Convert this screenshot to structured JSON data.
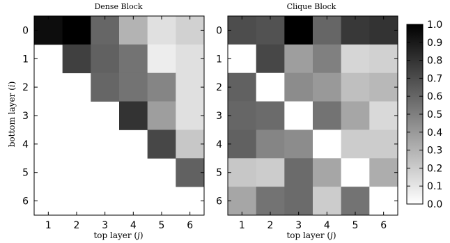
{
  "chart_data": [
    {
      "type": "heatmap",
      "title": "Dense Block",
      "xlabel": "top layer (j)",
      "ylabel": "bottom layer (i)",
      "x_ticks": [
        "1",
        "2",
        "3",
        "4",
        "5",
        "6"
      ],
      "y_ticks": [
        "0",
        "1",
        "2",
        "3",
        "4",
        "5",
        "6"
      ],
      "values": [
        [
          0.95,
          1.0,
          0.6,
          0.3,
          0.12,
          0.18
        ],
        [
          null,
          0.75,
          0.62,
          0.55,
          0.07,
          0.12
        ],
        [
          null,
          null,
          0.6,
          0.55,
          0.48,
          0.12
        ],
        [
          null,
          null,
          null,
          0.8,
          0.38,
          0.12
        ],
        [
          null,
          null,
          null,
          null,
          0.72,
          0.22
        ],
        [
          null,
          null,
          null,
          null,
          null,
          0.62
        ],
        [
          null,
          null,
          null,
          null,
          null,
          null
        ]
      ]
    },
    {
      "type": "heatmap",
      "title": "Clique Block",
      "xlabel": "top layer (j)",
      "x_ticks": [
        "1",
        "2",
        "3",
        "4",
        "5",
        "6"
      ],
      "y_ticks": [
        "0",
        "1",
        "2",
        "3",
        "4",
        "5",
        "6"
      ],
      "values": [
        [
          0.7,
          0.68,
          1.0,
          0.6,
          0.78,
          0.8
        ],
        [
          0.0,
          0.72,
          0.38,
          0.5,
          0.16,
          0.18
        ],
        [
          0.62,
          0.0,
          0.45,
          0.4,
          0.25,
          0.28
        ],
        [
          0.6,
          0.58,
          0.0,
          0.55,
          0.35,
          0.15
        ],
        [
          0.62,
          0.48,
          0.45,
          0.0,
          0.2,
          0.2
        ],
        [
          0.22,
          0.2,
          0.58,
          0.35,
          0.0,
          0.32
        ],
        [
          0.35,
          0.55,
          0.58,
          0.2,
          0.55,
          0.0
        ]
      ]
    }
  ],
  "colorbar": {
    "min": 0.0,
    "max": 1.0,
    "ticks": [
      "0.0",
      "0.1",
      "0.2",
      "0.3",
      "0.4",
      "0.5",
      "0.6",
      "0.7",
      "0.8",
      "0.9",
      "1.0"
    ],
    "colormap": "greys"
  }
}
